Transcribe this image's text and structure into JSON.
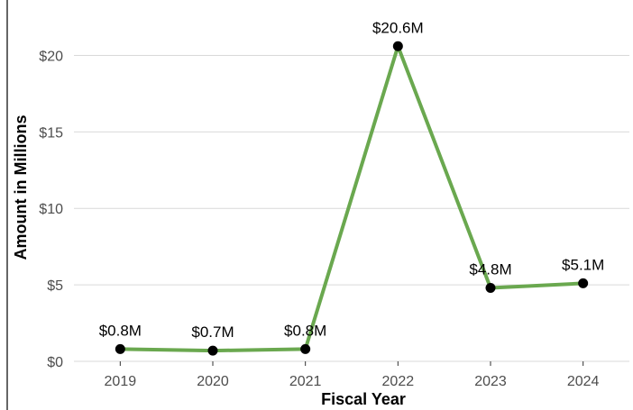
{
  "chart_data": {
    "type": "line",
    "title": "",
    "xlabel": "Fiscal Year",
    "ylabel": "Amount in Millions",
    "categories": [
      "2019",
      "2020",
      "2021",
      "2022",
      "2023",
      "2024"
    ],
    "series": [
      {
        "values": [
          0.8,
          0.7,
          0.8,
          20.6,
          4.8,
          5.1
        ],
        "labels": [
          "$0.8M",
          "$0.7M",
          "$0.8M",
          "$20.6M",
          "$4.8M",
          "$5.1M"
        ],
        "color": "#6aa84f"
      }
    ],
    "ylim": [
      0,
      21.5
    ],
    "yticks": [
      0,
      5,
      10,
      15,
      20
    ],
    "ytick_labels": [
      "$0",
      "$5",
      "$10",
      "$15",
      "$20"
    ],
    "grid": "horizontal",
    "legend": "none",
    "point_color": "#000000"
  }
}
